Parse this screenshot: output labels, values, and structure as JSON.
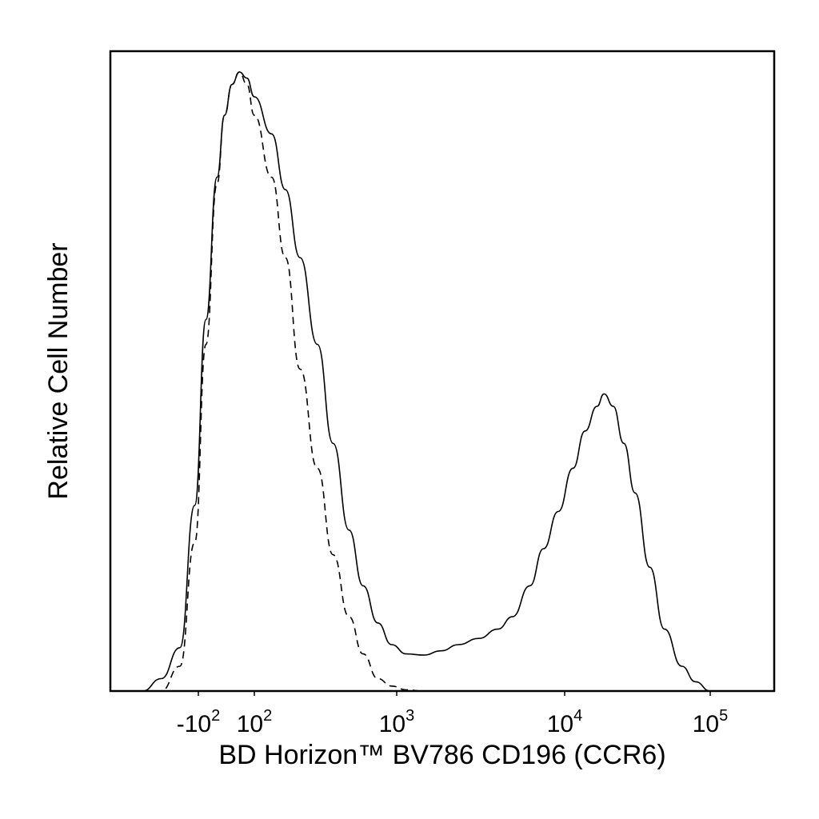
{
  "chart_data": {
    "type": "line",
    "title": "",
    "xlabel": "BD Horizon™ BV786 CD196 (CCR6)",
    "ylabel": "Relative Cell Number",
    "x_scale": "biexponential",
    "xlim": [
      -250,
      200000
    ],
    "ylim": [
      0,
      1.0
    ],
    "grid": false,
    "legend": "none",
    "x_ticks": [
      {
        "value": -100,
        "base": "-10",
        "exp": "2"
      },
      {
        "value": 100,
        "base": "10",
        "exp": "2"
      },
      {
        "value": 1000,
        "base": "10",
        "exp": "3"
      },
      {
        "value": 10000,
        "base": "10",
        "exp": "4"
      },
      {
        "value": 100000,
        "base": "10",
        "exp": "5"
      }
    ],
    "series": [
      {
        "style": "solid",
        "color": "#000000",
        "x": [
          -200,
          -150,
          -100,
          -60,
          -30,
          0,
          20,
          40,
          60,
          80,
          100,
          130,
          160,
          200,
          260,
          330,
          420,
          520,
          650,
          800,
          1000,
          1300,
          1700,
          2200,
          3000,
          4000,
          5000,
          6500,
          8000,
          10000,
          12500,
          15000,
          18000,
          20000,
          23000,
          27000,
          32000,
          40000,
          50000,
          65000,
          80000,
          100000
        ],
        "y": [
          0.0,
          0.02,
          0.07,
          0.3,
          0.6,
          0.83,
          0.93,
          0.98,
          1.0,
          0.99,
          0.96,
          0.9,
          0.81,
          0.7,
          0.56,
          0.4,
          0.26,
          0.17,
          0.11,
          0.075,
          0.06,
          0.058,
          0.065,
          0.075,
          0.085,
          0.1,
          0.12,
          0.17,
          0.23,
          0.29,
          0.36,
          0.42,
          0.46,
          0.48,
          0.46,
          0.4,
          0.32,
          0.2,
          0.1,
          0.04,
          0.015,
          0.0
        ]
      },
      {
        "style": "dashed",
        "color": "#000000",
        "x": [
          -200,
          -150,
          -100,
          -60,
          -30,
          0,
          20,
          40,
          60,
          80,
          100,
          130,
          160,
          200,
          260,
          330,
          420,
          520,
          650,
          800,
          1000,
          1300
        ],
        "y": [
          0.0,
          0.0,
          0.04,
          0.24,
          0.56,
          0.82,
          0.93,
          0.98,
          1.0,
          0.98,
          0.93,
          0.83,
          0.7,
          0.52,
          0.36,
          0.22,
          0.12,
          0.06,
          0.02,
          0.008,
          0.002,
          0.0
        ]
      }
    ]
  }
}
